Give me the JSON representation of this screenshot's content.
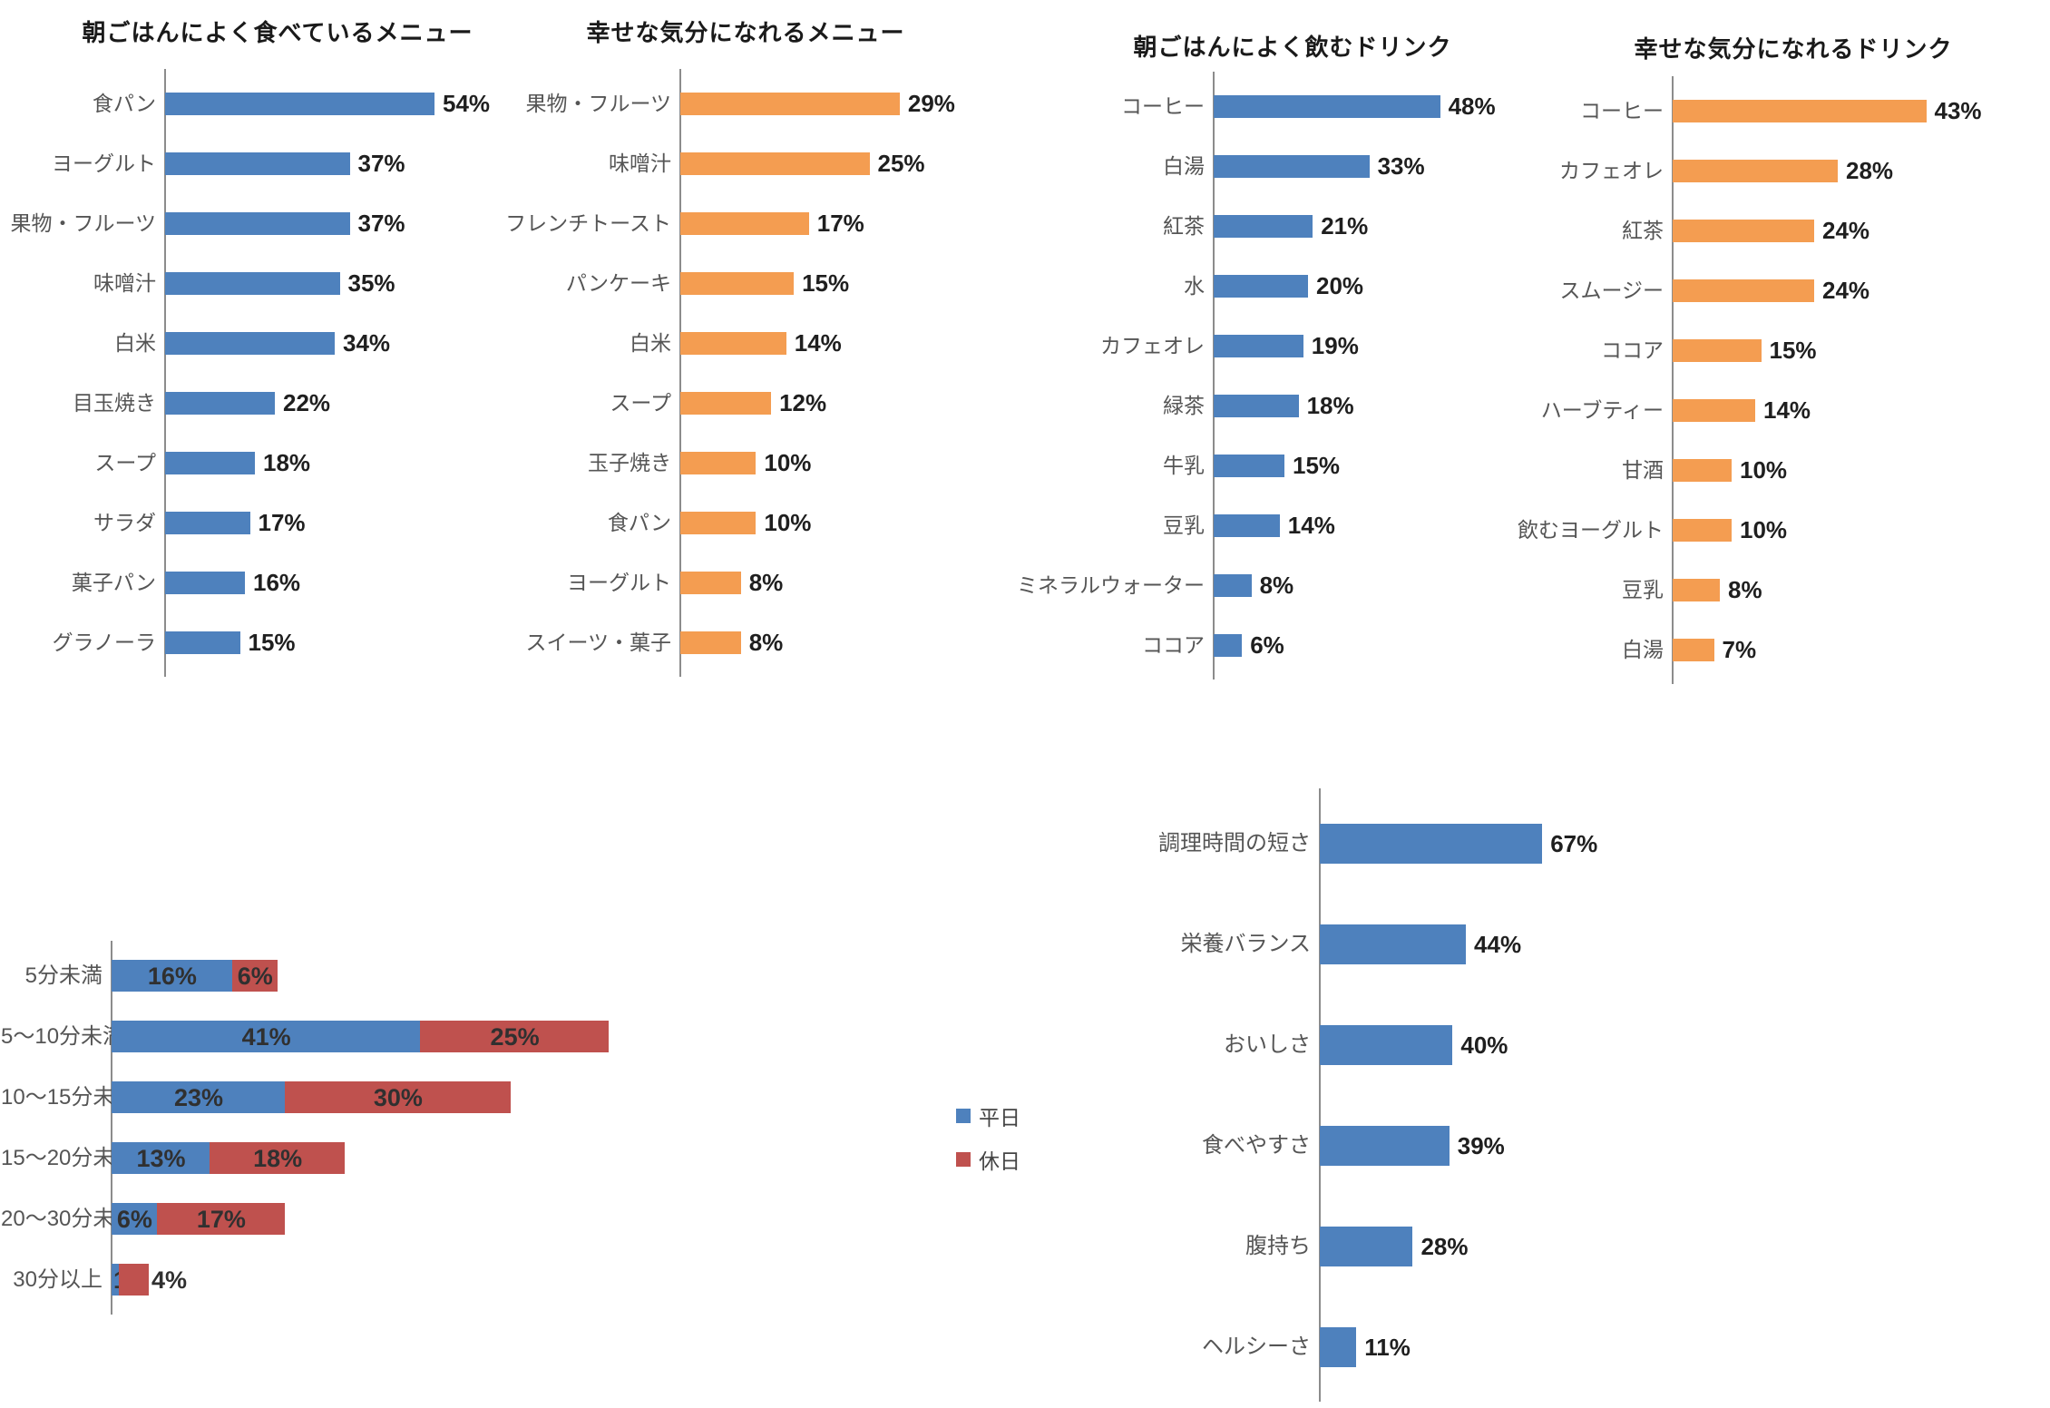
{
  "colors": {
    "blue": "#4E81BD",
    "orange": "#F49D51",
    "red": "#BF514E",
    "axis": "#8C8C8C",
    "category_label": "#555555",
    "value_label": "#1F1F1F",
    "stacked_value_label": "#303030"
  },
  "chart_data": [
    {
      "type": "bar",
      "orientation": "horizontal",
      "title": "朝ごはんによく食べているメニュー",
      "series_color": "blue",
      "unit": "%",
      "categories": [
        "食パン",
        "ヨーグルト",
        "果物・フルーツ",
        "味噌汁",
        "白米",
        "目玉焼き",
        "スープ",
        "サラダ",
        "菓子パン",
        "グラノーラ"
      ],
      "values": [
        54,
        37,
        37,
        35,
        34,
        22,
        18,
        17,
        16,
        15
      ],
      "value_labels": [
        "54%",
        "37%",
        "37%",
        "35%",
        "34%",
        "22%",
        "18%",
        "17%",
        "16%",
        "15%"
      ],
      "grid": false,
      "legend_position": "none"
    },
    {
      "type": "bar",
      "orientation": "horizontal",
      "title": "幸せな気分になれるメニュー",
      "series_color": "orange",
      "unit": "%",
      "categories": [
        "果物・フルーツ",
        "味噌汁",
        "フレンチトースト",
        "パンケーキ",
        "白米",
        "スープ",
        "玉子焼き",
        "食パン",
        "ヨーグルト",
        "スイーツ・菓子"
      ],
      "values": [
        29,
        25,
        17,
        15,
        14,
        12,
        10,
        10,
        8,
        8
      ],
      "value_labels": [
        "29%",
        "25%",
        "17%",
        "15%",
        "14%",
        "12%",
        "10%",
        "10%",
        "8%",
        "8%"
      ],
      "grid": false,
      "legend_position": "none"
    },
    {
      "type": "bar",
      "orientation": "horizontal",
      "title": "朝ごはんによく飲むドリンク",
      "series_color": "blue",
      "unit": "%",
      "categories": [
        "コーヒー",
        "白湯",
        "紅茶",
        "水",
        "カフェオレ",
        "緑茶",
        "牛乳",
        "豆乳",
        "ミネラルウォーター",
        "ココア"
      ],
      "values": [
        48,
        33,
        21,
        20,
        19,
        18,
        15,
        14,
        8,
        6
      ],
      "value_labels": [
        "48%",
        "33%",
        "21%",
        "20%",
        "19%",
        "18%",
        "15%",
        "14%",
        "8%",
        "6%"
      ],
      "grid": false,
      "legend_position": "none"
    },
    {
      "type": "bar",
      "orientation": "horizontal",
      "title": "幸せな気分になれるドリンク",
      "series_color": "orange",
      "unit": "%",
      "categories": [
        "コーヒー",
        "カフェオレ",
        "紅茶",
        "スムージー",
        "ココア",
        "ハーブティー",
        "甘酒",
        "飲むヨーグルト",
        "豆乳",
        "白湯"
      ],
      "values": [
        43,
        28,
        24,
        24,
        15,
        14,
        10,
        10,
        8,
        7
      ],
      "value_labels": [
        "43%",
        "28%",
        "24%",
        "24%",
        "15%",
        "14%",
        "10%",
        "10%",
        "8%",
        "7%"
      ],
      "grid": false,
      "legend_position": "none"
    },
    {
      "type": "stacked-bar",
      "orientation": "horizontal",
      "title": "",
      "unit": "%",
      "categories": [
        "5分未満",
        "5〜10分未満",
        "10〜15分未満",
        "15〜20分未満",
        "20〜30分未満",
        "30分以上"
      ],
      "series": [
        {
          "name": "平日",
          "color": "blue",
          "values": [
            16,
            41,
            23,
            13,
            6,
            1
          ],
          "value_labels": [
            "16%",
            "41%",
            "23%",
            "13%",
            "6%",
            "1%"
          ]
        },
        {
          "name": "休日",
          "color": "red",
          "values": [
            6,
            25,
            30,
            18,
            17,
            4
          ],
          "value_labels": [
            "6%",
            "25%",
            "30%",
            "18%",
            "17%",
            "4%"
          ]
        }
      ],
      "grid": false,
      "legend_position": "right"
    },
    {
      "type": "bar",
      "orientation": "horizontal",
      "title": "",
      "series_color": "blue",
      "unit": "%",
      "categories": [
        "調理時間の短さ",
        "栄養バランス",
        "おいしさ",
        "食べやすさ",
        "腹持ち",
        "ヘルシーさ"
      ],
      "values": [
        67,
        44,
        40,
        39,
        28,
        11
      ],
      "value_labels": [
        "67%",
        "44%",
        "40%",
        "39%",
        "28%",
        "11%"
      ],
      "grid": false,
      "legend_position": "none"
    }
  ]
}
